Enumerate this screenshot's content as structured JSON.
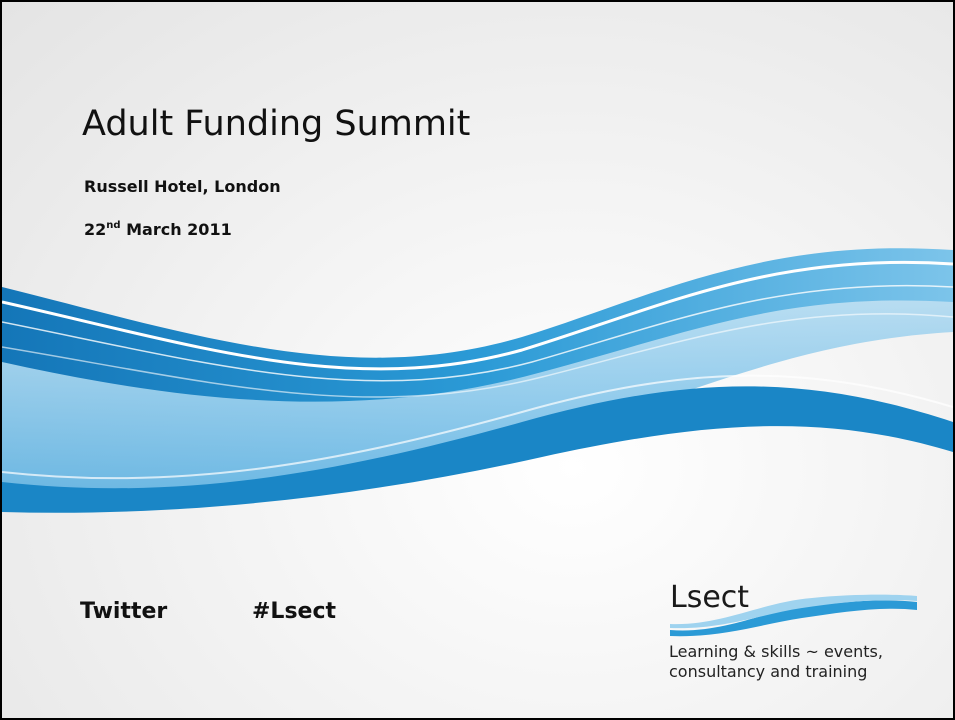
{
  "slide": {
    "title": "Adult Funding Summit",
    "venue": "Russell Hotel, London",
    "date": {
      "day": "22",
      "suffix": "nd",
      "rest": " March 2011"
    },
    "twitter_label": "Twitter",
    "hashtag": "#Lsect",
    "logo": {
      "name": "Lsect",
      "tagline": [
        "Learning & skills ~ events,",
        "consultancy and training"
      ]
    }
  }
}
